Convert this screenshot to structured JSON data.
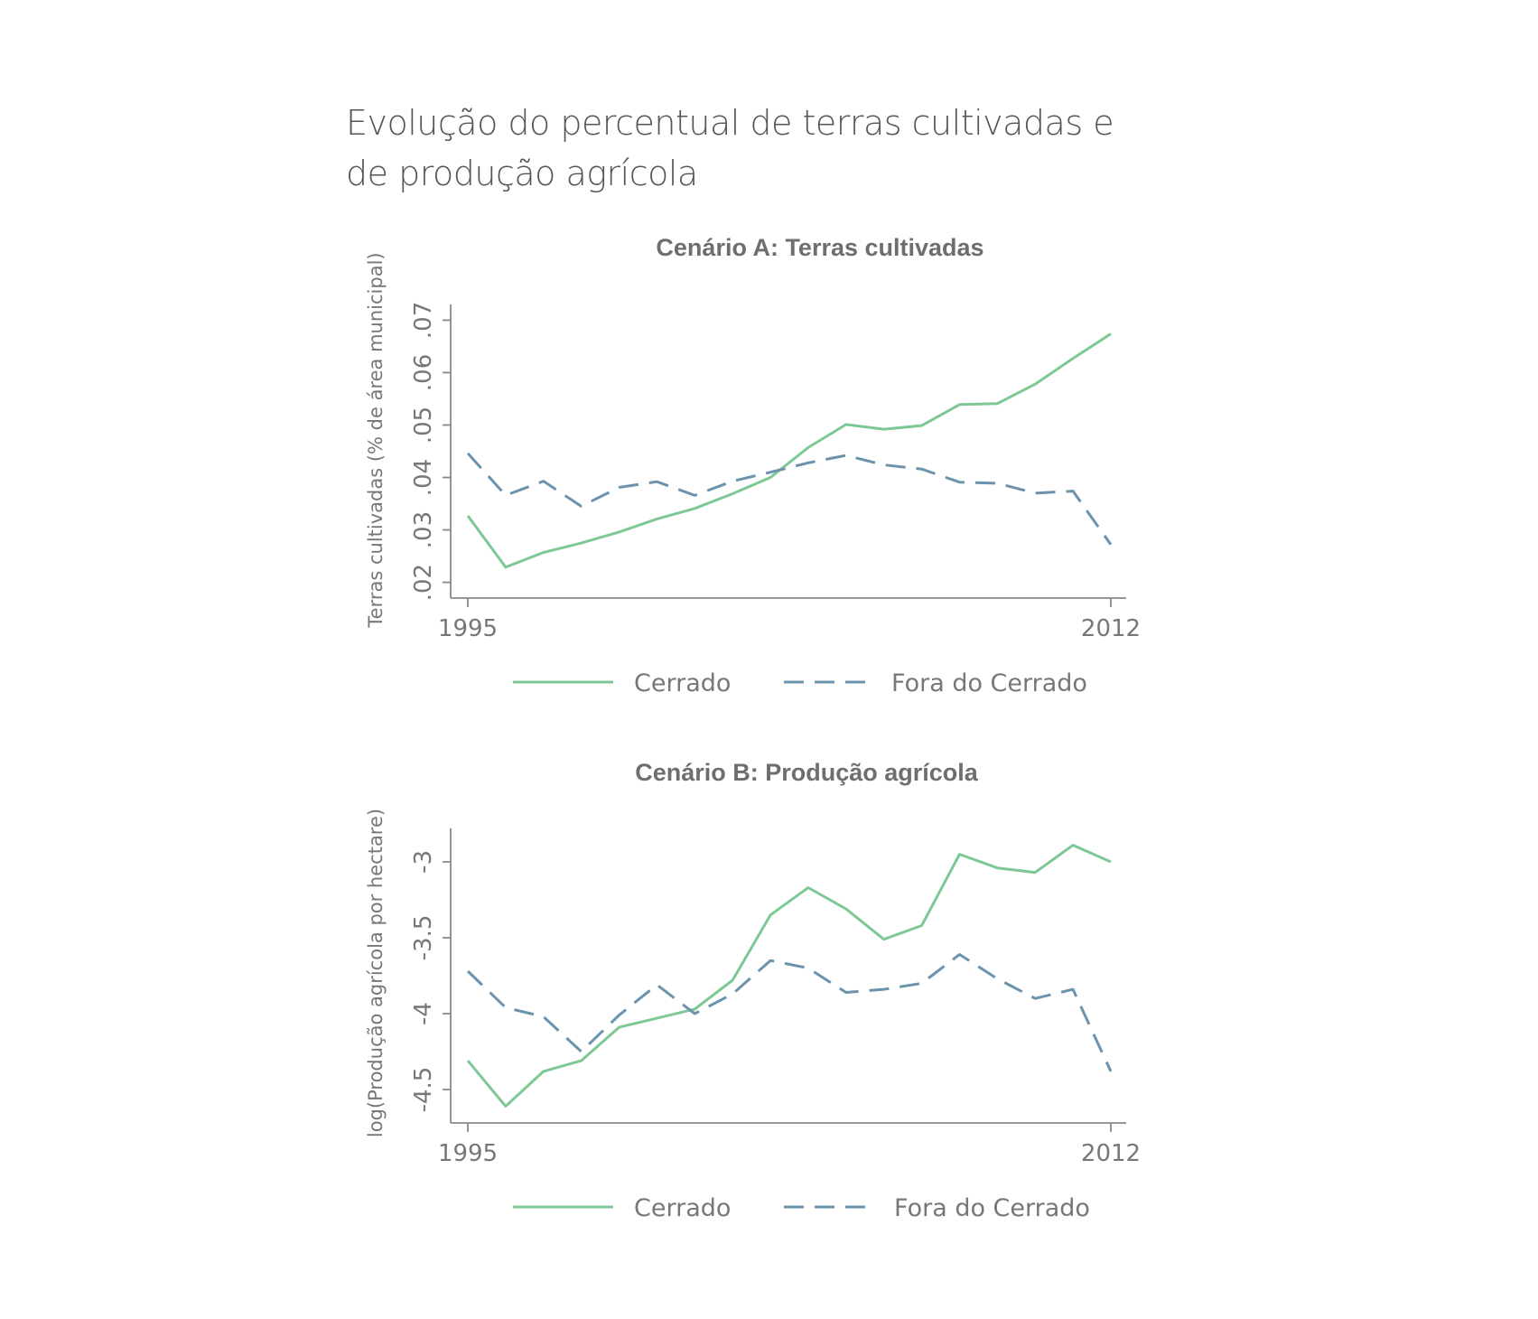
{
  "page": {
    "title": "Evolução do percentual de terras cultivadas e de produção agrícola"
  },
  "colors": {
    "cerrado": "#7dc895",
    "fora": "#6b93ad",
    "axis": "#888888",
    "text": "#555555"
  },
  "chart_data": [
    {
      "type": "line",
      "title": "Cenário A: Terras cultivadas",
      "ylabel": "Terras cultivadas (% de área municipal)",
      "xlabel": "",
      "x": [
        1995,
        1996,
        1997,
        1998,
        1999,
        2000,
        2001,
        2002,
        2003,
        2004,
        2005,
        2006,
        2007,
        2008,
        2009,
        2010,
        2011,
        2012
      ],
      "ylim": [
        0.017,
        0.073
      ],
      "yticks": [
        0.02,
        0.03,
        0.04,
        0.05,
        0.06,
        0.07
      ],
      "ytick_labels": [
        ".02",
        ".03",
        ".04",
        ".05",
        ".06",
        ".07"
      ],
      "xticks": [
        1995,
        2012
      ],
      "xtick_labels": [
        "1995",
        "2012"
      ],
      "legend": "bottom",
      "series": [
        {
          "name": "Cerrado",
          "style": "solid",
          "values": [
            0.0327,
            0.0229,
            0.0257,
            0.0275,
            0.0296,
            0.0321,
            0.0341,
            0.0369,
            0.04,
            0.0457,
            0.0501,
            0.0492,
            0.0499,
            0.0539,
            0.0541,
            0.0578,
            0.0627,
            0.0674
          ]
        },
        {
          "name": "Fora do Cerrado",
          "style": "dashed",
          "values": [
            0.0446,
            0.0366,
            0.0393,
            0.0345,
            0.0381,
            0.0392,
            0.0366,
            0.0393,
            0.041,
            0.0428,
            0.0442,
            0.0424,
            0.0416,
            0.0391,
            0.0389,
            0.037,
            0.0374,
            0.0272
          ]
        }
      ]
    },
    {
      "type": "line",
      "title": "Cenário B: Produção agrícola",
      "ylabel": "log(Produção agrícola por hectare)",
      "xlabel": "",
      "x": [
        1995,
        1996,
        1997,
        1998,
        1999,
        2000,
        2001,
        2002,
        2003,
        2004,
        2005,
        2006,
        2007,
        2008,
        2009,
        2010,
        2011,
        2012
      ],
      "ylim": [
        -4.72,
        -2.78
      ],
      "yticks": [
        -4.5,
        -4,
        -3.5,
        -3
      ],
      "ytick_labels": [
        "-4.5",
        "-4",
        "-3.5",
        "-3"
      ],
      "xticks": [
        1995,
        2012
      ],
      "xtick_labels": [
        "1995",
        "2012"
      ],
      "legend": "bottom",
      "series": [
        {
          "name": "Cerrado",
          "style": "solid",
          "values": [
            -4.31,
            -4.61,
            -4.38,
            -4.31,
            -4.09,
            -4.03,
            -3.97,
            -3.78,
            -3.35,
            -3.17,
            -3.31,
            -3.51,
            -3.42,
            -2.95,
            -3.04,
            -3.07,
            -2.89,
            -3.0
          ]
        },
        {
          "name": "Fora do Cerrado",
          "style": "dashed",
          "values": [
            -3.72,
            -3.96,
            -4.02,
            -4.25,
            -4.01,
            -3.81,
            -4.0,
            -3.87,
            -3.65,
            -3.7,
            -3.86,
            -3.84,
            -3.8,
            -3.61,
            -3.77,
            -3.9,
            -3.84,
            -4.38
          ]
        }
      ]
    }
  ]
}
